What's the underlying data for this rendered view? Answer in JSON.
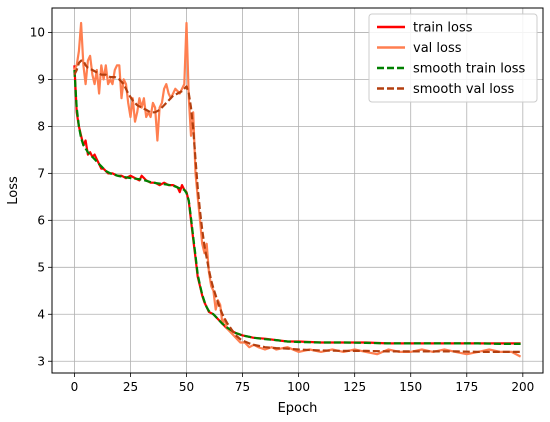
{
  "chart_data": {
    "type": "line",
    "xlabel": "Epoch",
    "ylabel": "Loss",
    "xlim": [
      -10,
      209
    ],
    "ylim": [
      2.75,
      10.52
    ],
    "xticks": [
      0,
      25,
      50,
      75,
      100,
      125,
      150,
      175,
      200
    ],
    "yticks": [
      3,
      4,
      5,
      6,
      7,
      8,
      9,
      10
    ],
    "grid": true,
    "legend_position": "top-right",
    "series": [
      {
        "name": "train loss",
        "color": "#ff0000",
        "style": "solid",
        "points": [
          [
            0,
            9.3
          ],
          [
            1,
            8.3
          ],
          [
            2,
            8.0
          ],
          [
            3,
            7.8
          ],
          [
            4,
            7.6
          ],
          [
            5,
            7.7
          ],
          [
            6,
            7.4
          ],
          [
            7,
            7.45
          ],
          [
            8,
            7.35
          ],
          [
            9,
            7.4
          ],
          [
            10,
            7.3
          ],
          [
            11,
            7.2
          ],
          [
            12,
            7.1
          ],
          [
            13,
            7.1
          ],
          [
            14,
            7.05
          ],
          [
            15,
            7.0
          ],
          [
            17,
            7.0
          ],
          [
            19,
            6.95
          ],
          [
            21,
            6.95
          ],
          [
            23,
            6.9
          ],
          [
            25,
            6.95
          ],
          [
            27,
            6.9
          ],
          [
            29,
            6.85
          ],
          [
            30,
            6.95
          ],
          [
            32,
            6.85
          ],
          [
            34,
            6.8
          ],
          [
            36,
            6.8
          ],
          [
            38,
            6.75
          ],
          [
            40,
            6.8
          ],
          [
            42,
            6.75
          ],
          [
            44,
            6.75
          ],
          [
            46,
            6.7
          ],
          [
            47,
            6.6
          ],
          [
            48,
            6.75
          ],
          [
            49,
            6.65
          ],
          [
            50,
            6.6
          ],
          [
            51,
            6.4
          ],
          [
            52,
            6.0
          ],
          [
            53,
            5.6
          ],
          [
            54,
            5.2
          ],
          [
            55,
            4.8
          ],
          [
            56,
            4.6
          ],
          [
            57,
            4.4
          ],
          [
            58,
            4.25
          ],
          [
            59,
            4.15
          ],
          [
            60,
            4.05
          ],
          [
            62,
            4.0
          ],
          [
            64,
            3.9
          ],
          [
            66,
            3.8
          ],
          [
            68,
            3.7
          ],
          [
            70,
            3.65
          ],
          [
            72,
            3.6
          ],
          [
            75,
            3.55
          ],
          [
            80,
            3.5
          ],
          [
            85,
            3.48
          ],
          [
            90,
            3.45
          ],
          [
            95,
            3.42
          ],
          [
            100,
            3.42
          ],
          [
            110,
            3.4
          ],
          [
            120,
            3.4
          ],
          [
            130,
            3.4
          ],
          [
            140,
            3.38
          ],
          [
            150,
            3.38
          ],
          [
            160,
            3.38
          ],
          [
            170,
            3.38
          ],
          [
            180,
            3.38
          ],
          [
            190,
            3.38
          ],
          [
            199,
            3.38
          ]
        ]
      },
      {
        "name": "val loss",
        "color": "#ff7f50",
        "style": "solid",
        "points": [
          [
            0,
            9.2
          ],
          [
            1,
            9.3
          ],
          [
            2,
            9.6
          ],
          [
            3,
            10.2
          ],
          [
            4,
            9.3
          ],
          [
            5,
            8.9
          ],
          [
            6,
            9.4
          ],
          [
            7,
            9.5
          ],
          [
            8,
            9.1
          ],
          [
            9,
            8.9
          ],
          [
            10,
            9.2
          ],
          [
            11,
            8.7
          ],
          [
            12,
            9.3
          ],
          [
            13,
            9.0
          ],
          [
            14,
            9.3
          ],
          [
            15,
            8.9
          ],
          [
            16,
            9.0
          ],
          [
            17,
            8.9
          ],
          [
            18,
            9.2
          ],
          [
            19,
            9.3
          ],
          [
            20,
            9.3
          ],
          [
            21,
            8.6
          ],
          [
            22,
            9.0
          ],
          [
            23,
            8.9
          ],
          [
            24,
            8.5
          ],
          [
            25,
            8.2
          ],
          [
            26,
            8.6
          ],
          [
            27,
            8.1
          ],
          [
            28,
            8.3
          ],
          [
            29,
            8.6
          ],
          [
            30,
            8.4
          ],
          [
            31,
            8.6
          ],
          [
            32,
            8.2
          ],
          [
            33,
            8.3
          ],
          [
            34,
            8.2
          ],
          [
            35,
            8.5
          ],
          [
            36,
            8.4
          ],
          [
            37,
            7.7
          ],
          [
            38,
            8.4
          ],
          [
            39,
            8.5
          ],
          [
            40,
            8.8
          ],
          [
            41,
            8.9
          ],
          [
            42,
            8.7
          ],
          [
            43,
            8.6
          ],
          [
            44,
            8.7
          ],
          [
            45,
            8.8
          ],
          [
            46,
            8.75
          ],
          [
            47,
            8.7
          ],
          [
            48,
            8.8
          ],
          [
            49,
            8.9
          ],
          [
            50,
            10.2
          ],
          [
            51,
            8.6
          ],
          [
            52,
            7.8
          ],
          [
            53,
            8.3
          ],
          [
            54,
            7.0
          ],
          [
            55,
            6.5
          ],
          [
            56,
            6.0
          ],
          [
            57,
            5.5
          ],
          [
            58,
            5.3
          ],
          [
            59,
            5.5
          ],
          [
            60,
            4.9
          ],
          [
            61,
            4.6
          ],
          [
            62,
            4.5
          ],
          [
            63,
            4.1
          ],
          [
            64,
            4.3
          ],
          [
            65,
            4.2
          ],
          [
            66,
            3.8
          ],
          [
            67,
            3.9
          ],
          [
            68,
            3.7
          ],
          [
            70,
            3.6
          ],
          [
            72,
            3.5
          ],
          [
            74,
            3.4
          ],
          [
            76,
            3.4
          ],
          [
            78,
            3.3
          ],
          [
            80,
            3.35
          ],
          [
            82,
            3.3
          ],
          [
            85,
            3.25
          ],
          [
            88,
            3.3
          ],
          [
            90,
            3.25
          ],
          [
            95,
            3.3
          ],
          [
            100,
            3.2
          ],
          [
            105,
            3.25
          ],
          [
            110,
            3.2
          ],
          [
            115,
            3.25
          ],
          [
            120,
            3.2
          ],
          [
            125,
            3.25
          ],
          [
            130,
            3.2
          ],
          [
            135,
            3.15
          ],
          [
            140,
            3.25
          ],
          [
            145,
            3.2
          ],
          [
            150,
            3.2
          ],
          [
            155,
            3.25
          ],
          [
            160,
            3.2
          ],
          [
            165,
            3.25
          ],
          [
            170,
            3.2
          ],
          [
            175,
            3.15
          ],
          [
            180,
            3.2
          ],
          [
            185,
            3.25
          ],
          [
            190,
            3.2
          ],
          [
            195,
            3.2
          ],
          [
            199,
            3.1
          ]
        ]
      },
      {
        "name": "smooth train loss",
        "color": "#008000",
        "style": "dashed",
        "points": [
          [
            0,
            9.2
          ],
          [
            1,
            8.4
          ],
          [
            2,
            8.0
          ],
          [
            3,
            7.75
          ],
          [
            4,
            7.6
          ],
          [
            6,
            7.45
          ],
          [
            8,
            7.35
          ],
          [
            10,
            7.25
          ],
          [
            12,
            7.15
          ],
          [
            14,
            7.05
          ],
          [
            16,
            7.0
          ],
          [
            18,
            6.97
          ],
          [
            20,
            6.94
          ],
          [
            25,
            6.9
          ],
          [
            30,
            6.87
          ],
          [
            35,
            6.8
          ],
          [
            40,
            6.77
          ],
          [
            44,
            6.74
          ],
          [
            47,
            6.68
          ],
          [
            49,
            6.65
          ],
          [
            50,
            6.58
          ],
          [
            51,
            6.42
          ],
          [
            52,
            6.05
          ],
          [
            53,
            5.65
          ],
          [
            54,
            5.25
          ],
          [
            55,
            4.85
          ],
          [
            56,
            4.62
          ],
          [
            57,
            4.42
          ],
          [
            58,
            4.27
          ],
          [
            59,
            4.15
          ],
          [
            60,
            4.07
          ],
          [
            62,
            4.0
          ],
          [
            64,
            3.9
          ],
          [
            66,
            3.8
          ],
          [
            68,
            3.72
          ],
          [
            70,
            3.66
          ],
          [
            72,
            3.6
          ],
          [
            75,
            3.55
          ],
          [
            80,
            3.5
          ],
          [
            85,
            3.47
          ],
          [
            90,
            3.45
          ],
          [
            95,
            3.42
          ],
          [
            100,
            3.41
          ],
          [
            110,
            3.4
          ],
          [
            120,
            3.4
          ],
          [
            130,
            3.39
          ],
          [
            140,
            3.38
          ],
          [
            150,
            3.38
          ],
          [
            160,
            3.38
          ],
          [
            170,
            3.38
          ],
          [
            180,
            3.38
          ],
          [
            190,
            3.37
          ],
          [
            199,
            3.37
          ]
        ]
      },
      {
        "name": "smooth val loss",
        "color": "#b33f0f",
        "style": "dashed",
        "points": [
          [
            0,
            9.1
          ],
          [
            1,
            9.2
          ],
          [
            2,
            9.35
          ],
          [
            3,
            9.4
          ],
          [
            4,
            9.4
          ],
          [
            5,
            9.3
          ],
          [
            6,
            9.25
          ],
          [
            8,
            9.2
          ],
          [
            10,
            9.15
          ],
          [
            12,
            9.1
          ],
          [
            14,
            9.1
          ],
          [
            16,
            9.05
          ],
          [
            18,
            9.05
          ],
          [
            20,
            9.0
          ],
          [
            22,
            8.9
          ],
          [
            24,
            8.7
          ],
          [
            26,
            8.55
          ],
          [
            28,
            8.45
          ],
          [
            30,
            8.4
          ],
          [
            32,
            8.35
          ],
          [
            34,
            8.3
          ],
          [
            36,
            8.3
          ],
          [
            38,
            8.35
          ],
          [
            40,
            8.45
          ],
          [
            42,
            8.55
          ],
          [
            44,
            8.65
          ],
          [
            46,
            8.7
          ],
          [
            48,
            8.75
          ],
          [
            49,
            8.8
          ],
          [
            50,
            8.85
          ],
          [
            51,
            8.7
          ],
          [
            52,
            8.4
          ],
          [
            53,
            7.95
          ],
          [
            54,
            7.3
          ],
          [
            55,
            6.7
          ],
          [
            56,
            6.2
          ],
          [
            57,
            5.8
          ],
          [
            58,
            5.45
          ],
          [
            59,
            5.2
          ],
          [
            60,
            4.95
          ],
          [
            61,
            4.72
          ],
          [
            62,
            4.55
          ],
          [
            63,
            4.4
          ],
          [
            64,
            4.25
          ],
          [
            65,
            4.12
          ],
          [
            66,
            4.0
          ],
          [
            68,
            3.82
          ],
          [
            70,
            3.68
          ],
          [
            72,
            3.55
          ],
          [
            74,
            3.47
          ],
          [
            76,
            3.42
          ],
          [
            78,
            3.38
          ],
          [
            80,
            3.35
          ],
          [
            85,
            3.3
          ],
          [
            90,
            3.28
          ],
          [
            95,
            3.27
          ],
          [
            100,
            3.25
          ],
          [
            110,
            3.23
          ],
          [
            120,
            3.22
          ],
          [
            130,
            3.22
          ],
          [
            140,
            3.21
          ],
          [
            150,
            3.21
          ],
          [
            160,
            3.21
          ],
          [
            170,
            3.21
          ],
          [
            180,
            3.2
          ],
          [
            190,
            3.2
          ],
          [
            199,
            3.2
          ]
        ]
      }
    ]
  }
}
